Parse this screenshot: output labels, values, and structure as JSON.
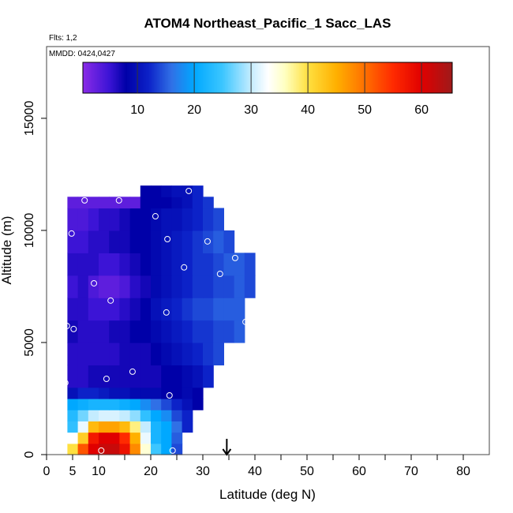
{
  "chart_data": {
    "type": "heatmap",
    "title": "ATOM4 Northeast_Pacific_1 Sacc_LAS",
    "flights_note": "Flts: 1,2",
    "dates_note": "MMDD: 0424,0427",
    "x_label": "Latitude (deg N)",
    "y_label": "Altitude (m)",
    "xlim": [
      0,
      85
    ],
    "ylim": [
      0,
      18200
    ],
    "xticks": [
      0,
      5,
      10,
      20,
      30,
      40,
      50,
      60,
      70,
      80
    ],
    "xminor": [
      15,
      25,
      35,
      45,
      55,
      65,
      75
    ],
    "yticks": [
      0,
      5000,
      10000,
      15000
    ],
    "clim": [
      0.4,
      65.4
    ],
    "cticks": [
      10,
      20,
      30,
      40,
      50,
      60
    ],
    "colorscale": [
      [
        0.4,
        "#8a2be6"
      ],
      [
        5,
        "#3c14d6"
      ],
      [
        8,
        "#0000a8"
      ],
      [
        12,
        "#0c22c8"
      ],
      [
        16,
        "#3070e6"
      ],
      [
        20,
        "#00a8ff"
      ],
      [
        25,
        "#3cc6ff"
      ],
      [
        30,
        "#c4ecff"
      ],
      [
        33,
        "#ffffff"
      ],
      [
        36,
        "#ffffc0"
      ],
      [
        40,
        "#ffe040"
      ],
      [
        45,
        "#ffb000"
      ],
      [
        50,
        "#ff7000"
      ],
      [
        55,
        "#ff2a00"
      ],
      [
        60,
        "#e00000"
      ],
      [
        65.4,
        "#9e1a1a"
      ]
    ],
    "x_edges": [
      4,
      6,
      8,
      10,
      12,
      14,
      16,
      18,
      20,
      22,
      24,
      26,
      28,
      30,
      32,
      34,
      36,
      38,
      40
    ],
    "y_edges": [
      0,
      500,
      1000,
      1500,
      2000,
      2500,
      3000,
      4000,
      5000,
      6000,
      7000,
      8000,
      9000,
      10000,
      11000,
      11500,
      12000
    ],
    "values": [
      [
        40,
        52,
        60,
        62,
        62,
        58,
        48,
        35,
        25,
        20,
        14,
        null,
        null,
        null,
        null,
        null,
        null,
        null
      ],
      [
        33,
        42,
        57,
        60,
        60,
        55,
        45,
        32,
        22,
        20,
        15,
        null,
        null,
        null,
        null,
        null,
        null,
        null
      ],
      [
        24,
        32,
        44,
        46,
        46,
        44,
        38,
        30,
        22,
        20,
        16,
        12,
        null,
        null,
        null,
        null,
        null,
        null
      ],
      [
        23,
        27,
        30,
        31,
        31,
        30,
        28,
        24,
        20,
        18,
        14,
        12,
        null,
        null,
        null,
        null,
        null,
        null
      ],
      [
        20,
        21,
        22,
        22,
        22,
        21,
        20,
        18,
        16,
        14,
        12,
        10,
        8,
        null,
        null,
        null,
        null,
        null
      ],
      [
        10,
        12,
        12,
        11,
        10,
        10,
        9,
        9,
        9,
        8,
        8,
        9,
        8,
        null,
        null,
        null,
        null,
        null
      ],
      [
        6,
        6,
        7,
        7,
        7,
        7,
        7,
        7,
        7,
        8,
        8,
        9,
        10,
        12,
        null,
        null,
        null,
        null
      ],
      [
        6,
        6,
        6,
        6,
        6,
        7,
        7,
        7,
        8,
        9,
        10,
        11,
        12,
        13,
        14,
        null,
        null,
        null
      ],
      [
        7,
        6,
        6,
        6,
        7,
        7,
        8,
        8,
        9,
        10,
        11,
        12,
        13,
        13,
        14,
        14,
        15,
        null
      ],
      [
        6,
        6,
        5,
        5,
        5,
        6,
        7,
        8,
        10,
        11,
        12,
        13,
        14,
        14,
        15,
        15,
        15,
        null
      ],
      [
        5,
        6,
        4,
        3,
        3,
        4,
        6,
        7,
        9,
        10,
        11,
        12,
        13,
        13,
        14,
        14,
        15,
        14
      ],
      [
        6,
        6,
        6,
        5,
        5,
        6,
        7,
        8,
        9,
        10,
        11,
        12,
        13,
        13,
        14,
        15,
        15,
        14
      ],
      [
        5,
        5,
        6,
        6,
        7,
        7,
        8,
        8,
        9,
        10,
        11,
        12,
        13,
        14,
        15,
        14,
        null,
        null
      ],
      [
        4,
        4,
        5,
        6,
        6,
        7,
        8,
        8,
        9,
        10,
        10,
        11,
        12,
        13,
        14,
        null,
        null,
        null
      ],
      [
        3,
        3,
        3,
        3,
        3,
        3,
        3,
        8,
        8,
        8,
        9,
        10,
        12,
        13,
        null,
        null,
        null,
        null
      ],
      [
        null,
        null,
        null,
        null,
        null,
        null,
        null,
        8,
        8,
        9,
        10,
        10,
        12,
        null,
        null,
        null,
        null,
        null
      ]
    ],
    "points": {
      "x": [
        7.3,
        13.9,
        27.3,
        20.9,
        4.8,
        23.2,
        30.9,
        36.2,
        26.4,
        33.3,
        9.1,
        12.3,
        23.0,
        38.2,
        3.9,
        5.2,
        16.5,
        11.5,
        3.6,
        23.6,
        10.5,
        24.2
      ],
      "y": [
        11340,
        11340,
        11760,
        10630,
        9860,
        9610,
        9510,
        8770,
        8350,
        8060,
        7640,
        6870,
        6340,
        5920,
        5740,
        5600,
        3700,
        3380,
        3200,
        2640,
        180,
        180
      ]
    },
    "marker_lat": 34.6
  }
}
